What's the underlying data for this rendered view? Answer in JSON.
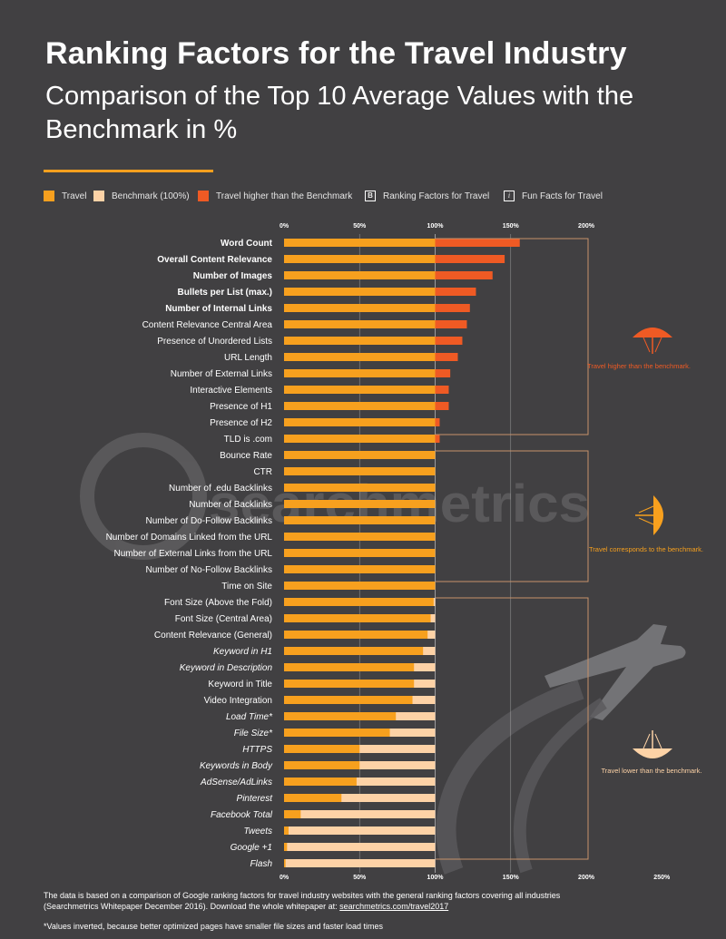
{
  "title": "Ranking Factors for the Travel Industry",
  "subtitle": "Comparison of the Top 10 Average Values with the Benchmark in %",
  "legend": {
    "travel": "Travel",
    "benchmark": "Benchmark (100%)",
    "higher": "Travel higher than the Benchmark",
    "ranking_box": "B",
    "ranking": "Ranking Factors for Travel",
    "fun_box": "i",
    "fun": "Fun Facts for Travel"
  },
  "colors": {
    "background": "#414042",
    "travel": "#f7a01e",
    "benchmark": "#fdd2a6",
    "higher": "#ef5a24",
    "guide": "#e6e6e6"
  },
  "annotations": {
    "higher": "Travel higher than the benchmark.",
    "corresponds": "Travel corresponds to the benchmark.",
    "lower": "Travel lower than the benchmark."
  },
  "watermark": "searchmetrics",
  "footnote": {
    "line1": "The data is based on a comparison of Google ranking factors for travel industry websites with the general ranking factors covering all industries",
    "line2_prefix": "(Searchmetrics Whitepaper December 2016). Download the whole whitepaper at: ",
    "link": "searchmetrics.com/travel2017",
    "asterisk": "*Values inverted, because better optimized pages have smaller file sizes and faster load times"
  },
  "chart_data": {
    "type": "bar",
    "orientation": "horizontal",
    "benchmark": 100,
    "top_ticks": [
      "0%",
      "50%",
      "100%",
      "150%",
      "200%"
    ],
    "bottom_ticks": [
      "0%",
      "50%",
      "100%",
      "150%",
      "200%",
      "250%"
    ],
    "categories": [
      {
        "label": "Word Count",
        "value": 156,
        "style": "bold"
      },
      {
        "label": "Overall Content Relevance",
        "value": 146,
        "style": "bold"
      },
      {
        "label": "Number of Images",
        "value": 138,
        "style": "bold"
      },
      {
        "label": "Bullets per List (max.)",
        "value": 127,
        "style": "bold"
      },
      {
        "label": "Number of Internal Links",
        "value": 123,
        "style": "bold"
      },
      {
        "label": "Content Relevance Central Area",
        "value": 121,
        "style": "normal"
      },
      {
        "label": "Presence of Unordered Lists",
        "value": 118,
        "style": "normal"
      },
      {
        "label": "URL Length",
        "value": 115,
        "style": "normal"
      },
      {
        "label": "Number of External Links",
        "value": 110,
        "style": "normal"
      },
      {
        "label": "Interactive Elements",
        "value": 109,
        "style": "normal"
      },
      {
        "label": "Presence of H1",
        "value": 109,
        "style": "normal"
      },
      {
        "label": "Presence of H2",
        "value": 103,
        "style": "normal"
      },
      {
        "label": "TLD is .com",
        "value": 103,
        "style": "normal"
      },
      {
        "label": "Bounce Rate",
        "value": 100,
        "style": "normal"
      },
      {
        "label": "CTR",
        "value": 100,
        "style": "normal"
      },
      {
        "label": "Number of .edu Backlinks",
        "value": 100,
        "style": "normal"
      },
      {
        "label": "Number of Backlinks",
        "value": 100,
        "style": "normal"
      },
      {
        "label": "Number of Do-Follow Backlinks",
        "value": 100,
        "style": "normal"
      },
      {
        "label": "Number of Domains Linked from the URL",
        "value": 100,
        "style": "normal"
      },
      {
        "label": "Number of External Links from the URL",
        "value": 100,
        "style": "normal"
      },
      {
        "label": "Number of No-Follow Backlinks",
        "value": 100,
        "style": "normal"
      },
      {
        "label": "Time on Site",
        "value": 100,
        "style": "normal"
      },
      {
        "label": "Font Size (Above the Fold)",
        "value": 99,
        "style": "normal"
      },
      {
        "label": "Font Size (Central Area)",
        "value": 97,
        "style": "normal"
      },
      {
        "label": "Content Relevance (General)",
        "value": 95,
        "style": "normal"
      },
      {
        "label": "Keyword in H1",
        "value": 92,
        "style": "italic"
      },
      {
        "label": "Keyword in Description",
        "value": 86,
        "style": "italic"
      },
      {
        "label": "Keyword in Title",
        "value": 86,
        "style": "normal"
      },
      {
        "label": "Video Integration",
        "value": 85,
        "style": "normal"
      },
      {
        "label": "Load Time*",
        "value": 74,
        "style": "italic"
      },
      {
        "label": "File Size*",
        "value": 70,
        "style": "italic"
      },
      {
        "label": "HTTPS",
        "value": 50,
        "style": "italic"
      },
      {
        "label": "Keywords in Body",
        "value": 50,
        "style": "italic"
      },
      {
        "label": "AdSense/AdLinks",
        "value": 48,
        "style": "italic"
      },
      {
        "label": "Pinterest",
        "value": 38,
        "style": "italic"
      },
      {
        "label": "Facebook Total",
        "value": 11,
        "style": "italic"
      },
      {
        "label": "Tweets",
        "value": 3,
        "style": "italic"
      },
      {
        "label": "Google +1",
        "value": 2,
        "style": "italic"
      },
      {
        "label": "Flash",
        "value": 1,
        "style": "italic"
      }
    ]
  }
}
